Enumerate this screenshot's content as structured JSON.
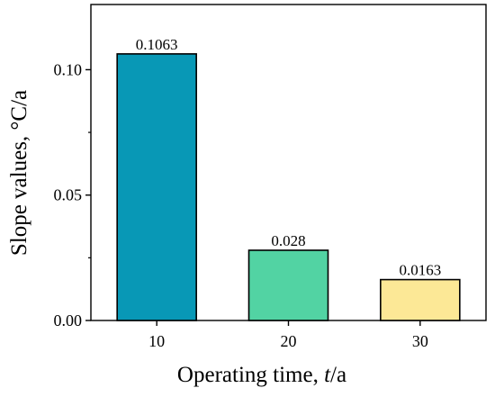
{
  "chart_data": {
    "type": "bar",
    "categories": [
      "10",
      "20",
      "30"
    ],
    "values": [
      0.1063,
      0.028,
      0.0163
    ],
    "data_labels": [
      "0.1063",
      "0.028",
      "0.0163"
    ],
    "bar_colors": [
      "#0898b6",
      "#52d3a3",
      "#fce896"
    ],
    "bar_stroke": "#000000",
    "xlabel_prefix": "Operating time, ",
    "xlabel_italic": "t",
    "xlabel_suffix": "/a",
    "ylabel": "Slope values, °C/a",
    "yticks": [
      "0.00",
      "0.05",
      "0.10"
    ],
    "ytick_values": [
      0,
      0.05,
      0.1
    ],
    "ylim": [
      0,
      0.126
    ],
    "grid": false,
    "legend": "none"
  }
}
